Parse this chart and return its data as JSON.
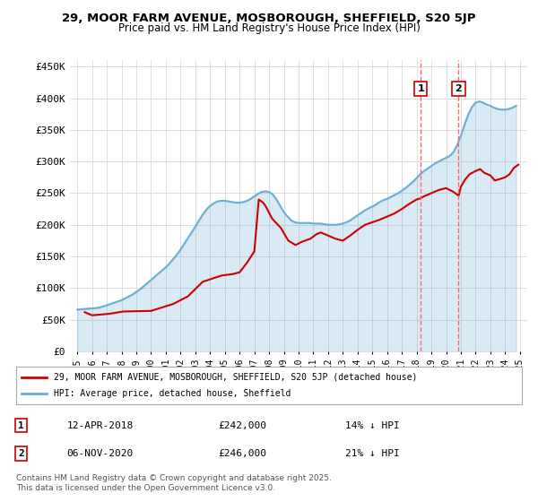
{
  "title1": "29, MOOR FARM AVENUE, MOSBOROUGH, SHEFFIELD, S20 5JP",
  "title2": "Price paid vs. HM Land Registry's House Price Index (HPI)",
  "ylabel_ticks": [
    "£0",
    "£50K",
    "£100K",
    "£150K",
    "£200K",
    "£250K",
    "£300K",
    "£350K",
    "£400K",
    "£450K"
  ],
  "ytick_vals": [
    0,
    50000,
    100000,
    150000,
    200000,
    250000,
    300000,
    350000,
    400000,
    450000
  ],
  "ylim": [
    0,
    460000
  ],
  "xlim_start": 1995,
  "xlim_end": 2025.5,
  "xticks": [
    1995,
    1996,
    1997,
    1998,
    1999,
    2000,
    2001,
    2002,
    2003,
    2004,
    2005,
    2006,
    2007,
    2008,
    2009,
    2010,
    2011,
    2012,
    2013,
    2014,
    2015,
    2016,
    2017,
    2018,
    2019,
    2020,
    2021,
    2022,
    2023,
    2024,
    2025
  ],
  "hpi_color": "#6baed6",
  "price_color": "#cc0000",
  "dashed_color": "#ff6666",
  "marker1_x": 2018.28,
  "marker1_y_hpi": 282000,
  "marker1_y_price": 242000,
  "marker2_x": 2020.85,
  "marker2_y_hpi": 312000,
  "marker2_y_price": 246000,
  "legend1": "29, MOOR FARM AVENUE, MOSBOROUGH, SHEFFIELD, S20 5JP (detached house)",
  "legend2": "HPI: Average price, detached house, Sheffield",
  "annotation1_date": "12-APR-2018",
  "annotation1_price": "£242,000",
  "annotation1_hpi": "14% ↓ HPI",
  "annotation2_date": "06-NOV-2020",
  "annotation2_price": "£246,000",
  "annotation2_hpi": "21% ↓ HPI",
  "copyright": "Contains HM Land Registry data © Crown copyright and database right 2025.\nThis data is licensed under the Open Government Licence v3.0.",
  "hpi_years": [
    1995.0,
    1995.25,
    1995.5,
    1995.75,
    1996.0,
    1996.25,
    1996.5,
    1996.75,
    1997.0,
    1997.25,
    1997.5,
    1997.75,
    1998.0,
    1998.25,
    1998.5,
    1998.75,
    1999.0,
    1999.25,
    1999.5,
    1999.75,
    2000.0,
    2000.25,
    2000.5,
    2000.75,
    2001.0,
    2001.25,
    2001.5,
    2001.75,
    2002.0,
    2002.25,
    2002.5,
    2002.75,
    2003.0,
    2003.25,
    2003.5,
    2003.75,
    2004.0,
    2004.25,
    2004.5,
    2004.75,
    2005.0,
    2005.25,
    2005.5,
    2005.75,
    2006.0,
    2006.25,
    2006.5,
    2006.75,
    2007.0,
    2007.25,
    2007.5,
    2007.75,
    2008.0,
    2008.25,
    2008.5,
    2008.75,
    2009.0,
    2009.25,
    2009.5,
    2009.75,
    2010.0,
    2010.25,
    2010.5,
    2010.75,
    2011.0,
    2011.25,
    2011.5,
    2011.75,
    2012.0,
    2012.25,
    2012.5,
    2012.75,
    2013.0,
    2013.25,
    2013.5,
    2013.75,
    2014.0,
    2014.25,
    2014.5,
    2014.75,
    2015.0,
    2015.25,
    2015.5,
    2015.75,
    2016.0,
    2016.25,
    2016.5,
    2016.75,
    2017.0,
    2017.25,
    2017.5,
    2017.75,
    2018.0,
    2018.25,
    2018.5,
    2018.75,
    2019.0,
    2019.25,
    2019.5,
    2019.75,
    2020.0,
    2020.25,
    2020.5,
    2020.75,
    2021.0,
    2021.25,
    2021.5,
    2021.75,
    2022.0,
    2022.25,
    2022.5,
    2022.75,
    2023.0,
    2023.25,
    2023.5,
    2023.75,
    2024.0,
    2024.25,
    2024.5,
    2024.75
  ],
  "hpi_values": [
    66000,
    66500,
    67000,
    67500,
    68000,
    68500,
    69500,
    71000,
    73000,
    75000,
    77000,
    79000,
    81000,
    84000,
    87000,
    90000,
    94000,
    98000,
    103000,
    108000,
    113000,
    118000,
    123000,
    128000,
    133000,
    139000,
    146000,
    153000,
    161000,
    170000,
    179000,
    188000,
    197000,
    207000,
    216000,
    224000,
    230000,
    234000,
    237000,
    238000,
    238000,
    237000,
    236000,
    235000,
    235000,
    236000,
    238000,
    241000,
    245000,
    249000,
    252000,
    253000,
    252000,
    248000,
    240000,
    230000,
    220000,
    213000,
    207000,
    204000,
    203000,
    203000,
    203000,
    203000,
    202000,
    202000,
    202000,
    201000,
    200000,
    200000,
    200000,
    201000,
    202000,
    204000,
    207000,
    211000,
    215000,
    219000,
    223000,
    226000,
    229000,
    232000,
    236000,
    239000,
    241000,
    244000,
    247000,
    250000,
    254000,
    258000,
    263000,
    268000,
    274000,
    280000,
    285000,
    289000,
    293000,
    297000,
    300000,
    303000,
    306000,
    309000,
    315000,
    326000,
    341000,
    358000,
    374000,
    386000,
    393000,
    395000,
    393000,
    390000,
    388000,
    385000,
    383000,
    382000,
    382000,
    383000,
    385000,
    388000
  ],
  "price_data": [
    [
      1995.5,
      62000
    ],
    [
      1996.0,
      57000
    ],
    [
      1997.2,
      59500
    ],
    [
      1998.1,
      63000
    ],
    [
      1999.0,
      63500
    ],
    [
      2000.0,
      64000
    ],
    [
      2001.5,
      75000
    ],
    [
      2002.5,
      87000
    ],
    [
      2003.5,
      110000
    ],
    [
      2004.8,
      120000
    ],
    [
      2005.5,
      122000
    ],
    [
      2006.0,
      125000
    ],
    [
      2006.5,
      140000
    ],
    [
      2007.0,
      158000
    ],
    [
      2007.3,
      240000
    ],
    [
      2007.6,
      235000
    ],
    [
      2007.8,
      228000
    ],
    [
      2008.2,
      210000
    ],
    [
      2008.8,
      195000
    ],
    [
      2009.3,
      175000
    ],
    [
      2009.8,
      168000
    ],
    [
      2010.2,
      173000
    ],
    [
      2010.8,
      178000
    ],
    [
      2011.2,
      185000
    ],
    [
      2011.5,
      188000
    ],
    [
      2012.0,
      183000
    ],
    [
      2012.5,
      178000
    ],
    [
      2013.0,
      175000
    ],
    [
      2013.5,
      183000
    ],
    [
      2014.0,
      192000
    ],
    [
      2014.5,
      200000
    ],
    [
      2015.0,
      204000
    ],
    [
      2015.5,
      208000
    ],
    [
      2016.0,
      213000
    ],
    [
      2016.5,
      218000
    ],
    [
      2017.0,
      225000
    ],
    [
      2017.5,
      233000
    ],
    [
      2018.0,
      240000
    ],
    [
      2018.28,
      242000
    ],
    [
      2018.5,
      245000
    ],
    [
      2019.0,
      250000
    ],
    [
      2019.5,
      255000
    ],
    [
      2020.0,
      258000
    ],
    [
      2020.5,
      252000
    ],
    [
      2020.85,
      246000
    ],
    [
      2021.0,
      260000
    ],
    [
      2021.3,
      272000
    ],
    [
      2021.6,
      280000
    ],
    [
      2022.0,
      285000
    ],
    [
      2022.3,
      288000
    ],
    [
      2022.6,
      282000
    ],
    [
      2023.0,
      278000
    ],
    [
      2023.3,
      270000
    ],
    [
      2023.6,
      272000
    ],
    [
      2024.0,
      275000
    ],
    [
      2024.3,
      280000
    ],
    [
      2024.6,
      290000
    ],
    [
      2024.9,
      295000
    ]
  ],
  "background_color": "#ffffff",
  "plot_bg_color": "#ffffff",
  "grid_color": "#dddddd"
}
